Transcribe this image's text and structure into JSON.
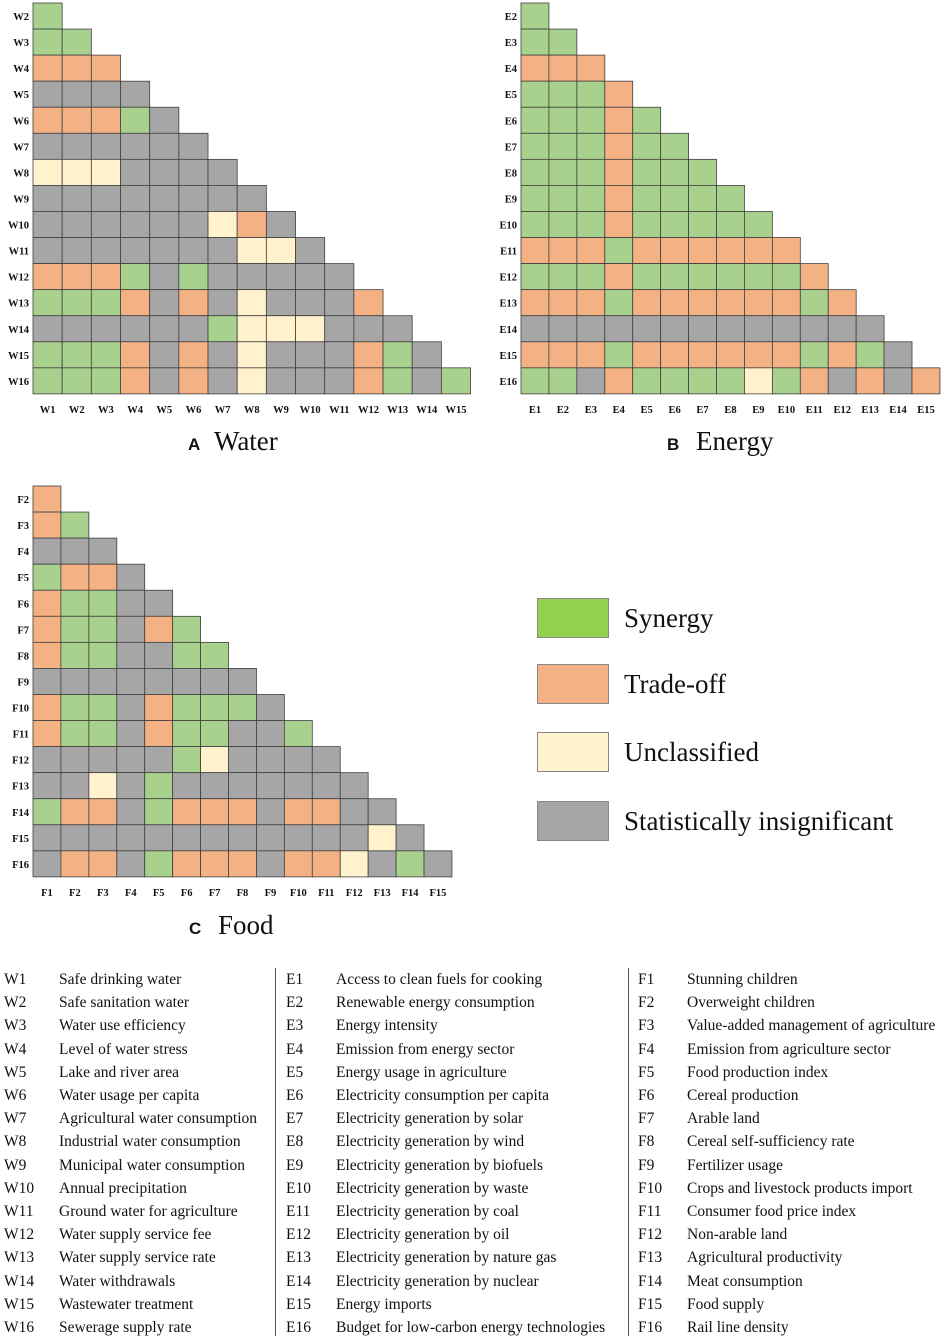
{
  "colors": {
    "S": "#a9d18e",
    "T": "#f4b183",
    "U": "#fff2cc",
    "N": "#a6a6a6",
    "legend_synergy": "#92d050"
  },
  "legend": [
    {
      "key": "S",
      "label": "Synergy"
    },
    {
      "key": "T",
      "label": "Trade-off"
    },
    {
      "key": "U",
      "label": "Unclassified"
    },
    {
      "key": "N",
      "label": "Statistically insignificant"
    }
  ],
  "chart_data": [
    {
      "type": "heatmap",
      "panel_letter": "A",
      "title": "Water",
      "row_labels": [
        "W2",
        "W3",
        "W4",
        "W5",
        "W6",
        "W7",
        "W8",
        "W9",
        "W10",
        "W11",
        "W12",
        "W13",
        "W14",
        "W15",
        "W16"
      ],
      "col_labels": [
        "W1",
        "W2",
        "W3",
        "W4",
        "W5",
        "W6",
        "W7",
        "W8",
        "W9",
        "W10",
        "W11",
        "W12",
        "W13",
        "W14",
        "W15"
      ],
      "values": [
        "S",
        "SS",
        "TTT",
        "NNNN",
        "TTTSN",
        "NNNNNN",
        "UUUNNNN",
        "NNNNNNNN",
        "NNNNNNUTN",
        "NNNNNNNUUN",
        "TTTSNSNNNNN",
        "SSSTNTNUNNNT",
        "NNNNNNSUUUNNN",
        "SSSTNTNUNNNTSN",
        "SSSTNTNUNNNTSNS"
      ]
    },
    {
      "type": "heatmap",
      "panel_letter": "B",
      "title": "Energy",
      "row_labels": [
        "E2",
        "E3",
        "E4",
        "E5",
        "E6",
        "E7",
        "E8",
        "E9",
        "E10",
        "E11",
        "E12",
        "E13",
        "E14",
        "E15",
        "E16"
      ],
      "col_labels": [
        "E1",
        "E2",
        "E3",
        "E4",
        "E5",
        "E6",
        "E7",
        "E8",
        "E9",
        "E10",
        "E11",
        "E12",
        "E13",
        "E14",
        "E15"
      ],
      "values": [
        "S",
        "SS",
        "TTT",
        "SSST",
        "SSSTS",
        "SSSTSS",
        "SSSTSSS",
        "SSSTSSSS",
        "SSSTSSSSS",
        "TTTSTTTTTT",
        "SSSTSSSSSST",
        "TTTSTTTTTTST",
        "NNNNNNNNNNNNN",
        "TTTSTTTTTTSTSN",
        "SSNTSSSSUSTNTNT"
      ]
    },
    {
      "type": "heatmap",
      "panel_letter": "C",
      "title": "Food",
      "row_labels": [
        "F2",
        "F3",
        "F4",
        "F5",
        "F6",
        "F7",
        "F8",
        "F9",
        "F10",
        "F11",
        "F12",
        "F13",
        "F14",
        "F15",
        "F16"
      ],
      "col_labels": [
        "F1",
        "F2",
        "F3",
        "F4",
        "F5",
        "F6",
        "F7",
        "F8",
        "F9",
        "F10",
        "F11",
        "F12",
        "F13",
        "F14",
        "F15"
      ],
      "values": [
        "T",
        "TS",
        "NNN",
        "STTN",
        "TSSNN",
        "TSSNTS",
        "TSSNNSS",
        "NNNNNNNN",
        "TSSNTSSSN",
        "TSSNTSSNNS",
        "NNNNNSUNNNN",
        "NNUNSNNNNNNN",
        "STTNSTTTNTTNN",
        "NNNNNNNNNNNNUN",
        "NTTNSTTTNTTUNSN"
      ]
    }
  ],
  "variables": [
    [
      {
        "code": "W1",
        "name": "Safe drinking water"
      },
      {
        "code": "W2",
        "name": "Safe sanitation water"
      },
      {
        "code": "W3",
        "name": "Water use efficiency"
      },
      {
        "code": "W4",
        "name": "Level of water stress"
      },
      {
        "code": "W5",
        "name": "Lake and river area"
      },
      {
        "code": "W6",
        "name": "Water usage per capita"
      },
      {
        "code": "W7",
        "name": "Agricultural water consumption"
      },
      {
        "code": "W8",
        "name": "Industrial water consumption"
      },
      {
        "code": "W9",
        "name": "Municipal water consumption"
      },
      {
        "code": "W10",
        "name": "Annual precipitation"
      },
      {
        "code": "W11",
        "name": "Ground water for agriculture"
      },
      {
        "code": "W12",
        "name": "Water supply service fee"
      },
      {
        "code": "W13",
        "name": "Water supply service rate"
      },
      {
        "code": "W14",
        "name": "Water withdrawals"
      },
      {
        "code": "W15",
        "name": "Wastewater treatment"
      },
      {
        "code": "W16",
        "name": "Sewerage supply rate"
      }
    ],
    [
      {
        "code": "E1",
        "name": "Access to clean fuels for cooking"
      },
      {
        "code": "E2",
        "name": "Renewable energy consumption"
      },
      {
        "code": "E3",
        "name": "Energy intensity"
      },
      {
        "code": "E4",
        "name": "Emission from energy sector"
      },
      {
        "code": "E5",
        "name": "Energy usage in agriculture"
      },
      {
        "code": "E6",
        "name": "Electricity consumption per capita"
      },
      {
        "code": "E7",
        "name": "Electricity generation by solar"
      },
      {
        "code": "E8",
        "name": "Electricity generation by wind"
      },
      {
        "code": "E9",
        "name": "Electricity generation by biofuels"
      },
      {
        "code": "E10",
        "name": "Electricity generation by waste"
      },
      {
        "code": "E11",
        "name": "Electricity generation by coal"
      },
      {
        "code": "E12",
        "name": "Electricity generation by oil"
      },
      {
        "code": "E13",
        "name": "Electricity generation by nature gas"
      },
      {
        "code": "E14",
        "name": "Electricity generation by nuclear"
      },
      {
        "code": "E15",
        "name": "Energy imports"
      },
      {
        "code": "E16",
        "name": "Budget for low-carbon energy technologies"
      }
    ],
    [
      {
        "code": "F1",
        "name": "Stunning children"
      },
      {
        "code": "F2",
        "name": "Overweight children"
      },
      {
        "code": "F3",
        "name": "Value-added management of agriculture"
      },
      {
        "code": "F4",
        "name": "Emission from agriculture sector"
      },
      {
        "code": "F5",
        "name": "Food production index"
      },
      {
        "code": "F6",
        "name": "Cereal production"
      },
      {
        "code": "F7",
        "name": "Arable land"
      },
      {
        "code": "F8",
        "name": "Cereal self-sufficiency rate"
      },
      {
        "code": "F9",
        "name": "Fertilizer usage"
      },
      {
        "code": "F10",
        "name": "Crops and livestock products import"
      },
      {
        "code": "F11",
        "name": "Consumer food price index"
      },
      {
        "code": "F12",
        "name": "Non-arable land"
      },
      {
        "code": "F13",
        "name": "Agricultural productivity"
      },
      {
        "code": "F14",
        "name": "Meat consumption"
      },
      {
        "code": "F15",
        "name": "Food supply"
      },
      {
        "code": "F16",
        "name": "Rail line density"
      }
    ]
  ]
}
